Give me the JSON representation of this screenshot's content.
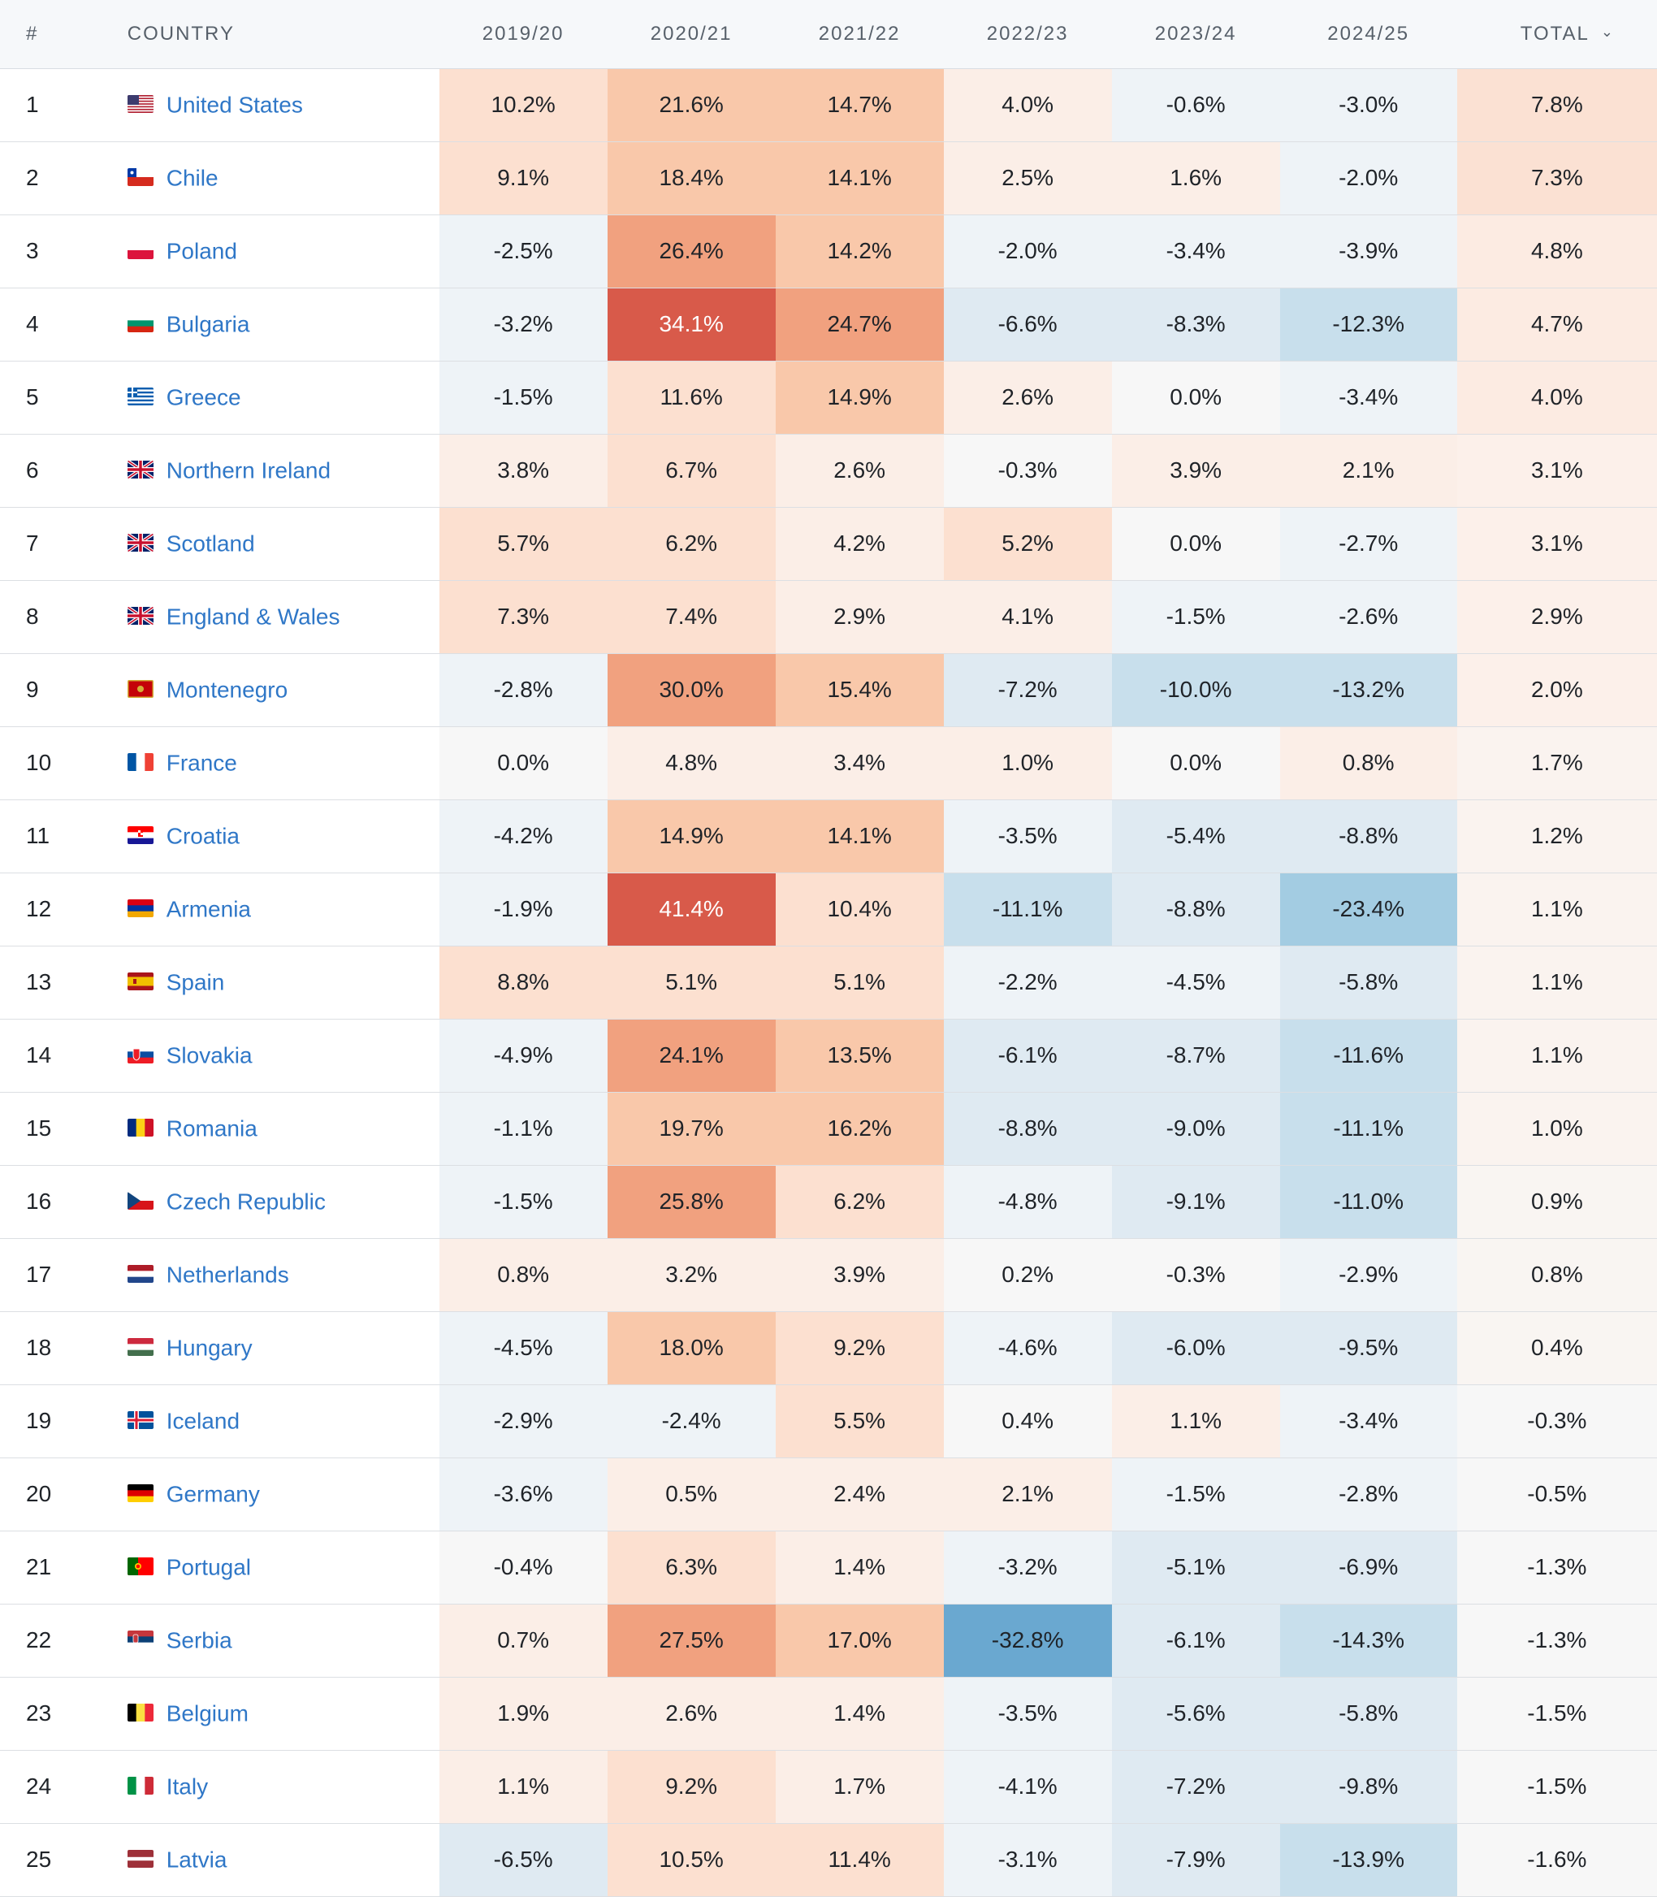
{
  "columns": {
    "rank": "#",
    "country": "COUNTRY",
    "years": [
      "2019/20",
      "2020/21",
      "2021/22",
      "2022/23",
      "2023/24",
      "2024/25"
    ],
    "total": "TOTAL",
    "sort_icon": "chevron-down-icon"
  },
  "colors": {
    "positive_ramp": [
      "#fbeee7",
      "#fce0d0",
      "#f9c8aa",
      "#f1a17f",
      "#d85a4a"
    ],
    "negative_ramp": [
      "#eef3f7",
      "#dfeaf2",
      "#c8dfec",
      "#a3cce2",
      "#6aa8d0"
    ],
    "link": "#2f77c7",
    "header_bg": "#f6f8fa"
  },
  "rows": [
    {
      "rank": "1",
      "flag": "us",
      "country": "United States",
      "values": [
        "10.2%",
        "21.6%",
        "14.7%",
        "4.0%",
        "-0.6%",
        "-3.0%"
      ],
      "total": "7.8%"
    },
    {
      "rank": "2",
      "flag": "cl",
      "country": "Chile",
      "values": [
        "9.1%",
        "18.4%",
        "14.1%",
        "2.5%",
        "1.6%",
        "-2.0%"
      ],
      "total": "7.3%"
    },
    {
      "rank": "3",
      "flag": "pl",
      "country": "Poland",
      "values": [
        "-2.5%",
        "26.4%",
        "14.2%",
        "-2.0%",
        "-3.4%",
        "-3.9%"
      ],
      "total": "4.8%"
    },
    {
      "rank": "4",
      "flag": "bg",
      "country": "Bulgaria",
      "values": [
        "-3.2%",
        "34.1%",
        "24.7%",
        "-6.6%",
        "-8.3%",
        "-12.3%"
      ],
      "total": "4.7%"
    },
    {
      "rank": "5",
      "flag": "gr",
      "country": "Greece",
      "values": [
        "-1.5%",
        "11.6%",
        "14.9%",
        "2.6%",
        "0.0%",
        "-3.4%"
      ],
      "total": "4.0%"
    },
    {
      "rank": "6",
      "flag": "gb",
      "country": "Northern Ireland",
      "values": [
        "3.8%",
        "6.7%",
        "2.6%",
        "-0.3%",
        "3.9%",
        "2.1%"
      ],
      "total": "3.1%"
    },
    {
      "rank": "7",
      "flag": "gb",
      "country": "Scotland",
      "values": [
        "5.7%",
        "6.2%",
        "4.2%",
        "5.2%",
        "0.0%",
        "-2.7%"
      ],
      "total": "3.1%"
    },
    {
      "rank": "8",
      "flag": "gb",
      "country": "England & Wales",
      "values": [
        "7.3%",
        "7.4%",
        "2.9%",
        "4.1%",
        "-1.5%",
        "-2.6%"
      ],
      "total": "2.9%"
    },
    {
      "rank": "9",
      "flag": "me",
      "country": "Montenegro",
      "values": [
        "-2.8%",
        "30.0%",
        "15.4%",
        "-7.2%",
        "-10.0%",
        "-13.2%"
      ],
      "total": "2.0%"
    },
    {
      "rank": "10",
      "flag": "fr",
      "country": "France",
      "values": [
        "0.0%",
        "4.8%",
        "3.4%",
        "1.0%",
        "0.0%",
        "0.8%"
      ],
      "total": "1.7%"
    },
    {
      "rank": "11",
      "flag": "hr",
      "country": "Croatia",
      "values": [
        "-4.2%",
        "14.9%",
        "14.1%",
        "-3.5%",
        "-5.4%",
        "-8.8%"
      ],
      "total": "1.2%"
    },
    {
      "rank": "12",
      "flag": "am",
      "country": "Armenia",
      "values": [
        "-1.9%",
        "41.4%",
        "10.4%",
        "-11.1%",
        "-8.8%",
        "-23.4%"
      ],
      "total": "1.1%"
    },
    {
      "rank": "13",
      "flag": "es",
      "country": "Spain",
      "values": [
        "8.8%",
        "5.1%",
        "5.1%",
        "-2.2%",
        "-4.5%",
        "-5.8%"
      ],
      "total": "1.1%"
    },
    {
      "rank": "14",
      "flag": "sk",
      "country": "Slovakia",
      "values": [
        "-4.9%",
        "24.1%",
        "13.5%",
        "-6.1%",
        "-8.7%",
        "-11.6%"
      ],
      "total": "1.1%"
    },
    {
      "rank": "15",
      "flag": "ro",
      "country": "Romania",
      "values": [
        "-1.1%",
        "19.7%",
        "16.2%",
        "-8.8%",
        "-9.0%",
        "-11.1%"
      ],
      "total": "1.0%"
    },
    {
      "rank": "16",
      "flag": "cz",
      "country": "Czech Republic",
      "values": [
        "-1.5%",
        "25.8%",
        "6.2%",
        "-4.8%",
        "-9.1%",
        "-11.0%"
      ],
      "total": "0.9%"
    },
    {
      "rank": "17",
      "flag": "nl",
      "country": "Netherlands",
      "values": [
        "0.8%",
        "3.2%",
        "3.9%",
        "0.2%",
        "-0.3%",
        "-2.9%"
      ],
      "total": "0.8%"
    },
    {
      "rank": "18",
      "flag": "hu",
      "country": "Hungary",
      "values": [
        "-4.5%",
        "18.0%",
        "9.2%",
        "-4.6%",
        "-6.0%",
        "-9.5%"
      ],
      "total": "0.4%"
    },
    {
      "rank": "19",
      "flag": "is",
      "country": "Iceland",
      "values": [
        "-2.9%",
        "-2.4%",
        "5.5%",
        "0.4%",
        "1.1%",
        "-3.4%"
      ],
      "total": "-0.3%"
    },
    {
      "rank": "20",
      "flag": "de",
      "country": "Germany",
      "values": [
        "-3.6%",
        "0.5%",
        "2.4%",
        "2.1%",
        "-1.5%",
        "-2.8%"
      ],
      "total": "-0.5%"
    },
    {
      "rank": "21",
      "flag": "pt",
      "country": "Portugal",
      "values": [
        "-0.4%",
        "6.3%",
        "1.4%",
        "-3.2%",
        "-5.1%",
        "-6.9%"
      ],
      "total": "-1.3%"
    },
    {
      "rank": "22",
      "flag": "rs",
      "country": "Serbia",
      "values": [
        "0.7%",
        "27.5%",
        "17.0%",
        "-32.8%",
        "-6.1%",
        "-14.3%"
      ],
      "total": "-1.3%"
    },
    {
      "rank": "23",
      "flag": "be",
      "country": "Belgium",
      "values": [
        "1.9%",
        "2.6%",
        "1.4%",
        "-3.5%",
        "-5.6%",
        "-5.8%"
      ],
      "total": "-1.5%"
    },
    {
      "rank": "24",
      "flag": "it",
      "country": "Italy",
      "values": [
        "1.1%",
        "9.2%",
        "1.7%",
        "-4.1%",
        "-7.2%",
        "-9.8%"
      ],
      "total": "-1.5%"
    },
    {
      "rank": "25",
      "flag": "lv",
      "country": "Latvia",
      "values": [
        "-6.5%",
        "10.5%",
        "11.4%",
        "-3.1%",
        "-7.9%",
        "-13.9%"
      ],
      "total": "-1.6%"
    }
  ]
}
